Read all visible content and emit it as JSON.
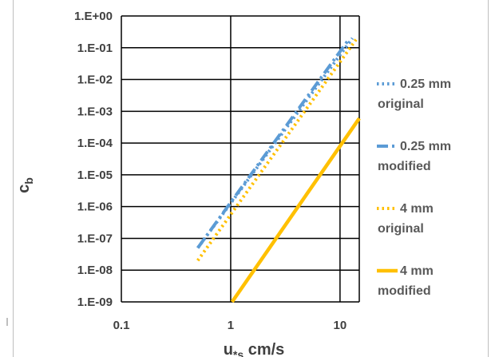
{
  "chart_data": {
    "type": "line",
    "x_scale": "log",
    "y_scale": "log",
    "xlim": [
      0.1,
      15
    ],
    "ylim": [
      1e-09,
      1
    ],
    "x_ticks": [
      "0.1",
      "1",
      "10"
    ],
    "y_ticks": [
      "1.E-09",
      "1.E-08",
      "1.E-07",
      "1.E-06",
      "1.E-05",
      "1.E-04",
      "1.E-03",
      "1.E-02",
      "1.E-01",
      "1.E+00"
    ],
    "ylabel_main": "c",
    "ylabel_sub": "b",
    "xlabel_main": "u",
    "xlabel_sub": "*s",
    "xlabel_unit": " cm/s",
    "grid": true,
    "legend_position": "right",
    "series": [
      {
        "name_line1": "0.25 mm",
        "name_line2": "original",
        "color": "#5b9bd5",
        "style": "dotted",
        "x": [
          0.5,
          13
        ],
        "y": [
          5e-08,
          0.2
        ]
      },
      {
        "name_line1": "0.25 mm",
        "name_line2": "modified",
        "color": "#5b9bd5",
        "style": "dashdot",
        "x": [
          0.5,
          12
        ],
        "y": [
          5e-08,
          0.18
        ]
      },
      {
        "name_line1": "4 mm",
        "name_line2": "original",
        "color": "#ffc000",
        "style": "dotted",
        "x": [
          0.5,
          14
        ],
        "y": [
          2e-08,
          0.18
        ]
      },
      {
        "name_line1": "4  mm",
        "name_line2": "modified",
        "color": "#ffc000",
        "style": "solid",
        "x": [
          1.03,
          15
        ],
        "y": [
          1e-09,
          0.0006
        ]
      }
    ]
  }
}
